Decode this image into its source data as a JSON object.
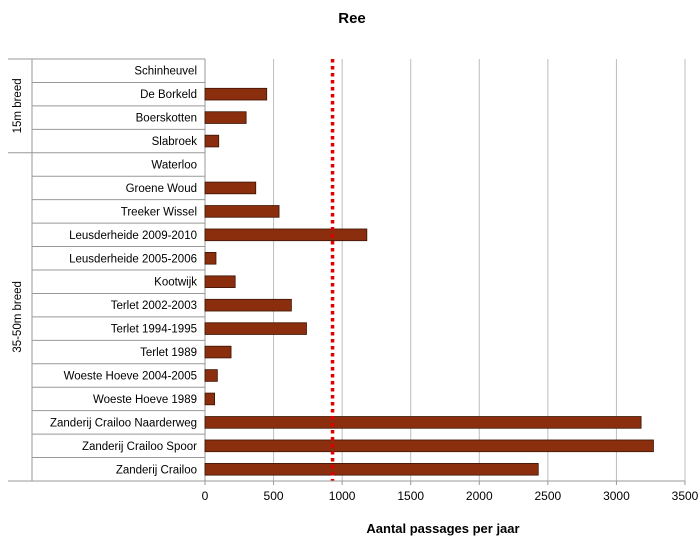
{
  "chart_data": {
    "type": "bar",
    "orientation": "horizontal",
    "title": "Ree",
    "xlabel": "Aantal passages per jaar",
    "ylabel": "",
    "xlim": [
      0,
      3500
    ],
    "xticks": [
      0,
      500,
      1000,
      1500,
      2000,
      2500,
      3000,
      3500
    ],
    "vertical_grid": true,
    "bar_color": "#8B2E0E",
    "reference_line": {
      "value": 930,
      "color": "#E00000",
      "style": "dotted"
    },
    "groups": [
      {
        "label": "15m breed",
        "categories": [
          "Schinheuvel",
          "De Borkeld",
          "Boerskotten",
          "Slabroek"
        ]
      },
      {
        "label": "35-50m breed",
        "categories": [
          "Waterloo",
          "Groene Woud",
          "Treeker Wissel",
          "Leusderheide 2009-2010",
          "Leusderheide 2005-2006",
          "Kootwijk",
          "Terlet 2002-2003",
          "Terlet 1994-1995",
          "Terlet 1989",
          "Woeste Hoeve 2004-2005",
          "Woeste Hoeve 1989",
          "Zanderij Crailoo Naarderweg",
          "Zanderij Crailoo Spoor",
          "Zanderij Crailoo"
        ]
      }
    ],
    "categories": [
      "Schinheuvel",
      "De Borkeld",
      "Boerskotten",
      "Slabroek",
      "Waterloo",
      "Groene Woud",
      "Treeker Wissel",
      "Leusderheide 2009-2010",
      "Leusderheide 2005-2006",
      "Kootwijk",
      "Terlet 2002-2003",
      "Terlet 1994-1995",
      "Terlet 1989",
      "Woeste Hoeve 2004-2005",
      "Woeste Hoeve 1989",
      "Zanderij Crailoo Naarderweg",
      "Zanderij Crailoo Spoor",
      "Zanderij Crailoo"
    ],
    "values": [
      0,
      450,
      300,
      100,
      0,
      370,
      540,
      1180,
      80,
      220,
      630,
      740,
      190,
      90,
      70,
      3180,
      3270,
      2430
    ]
  }
}
